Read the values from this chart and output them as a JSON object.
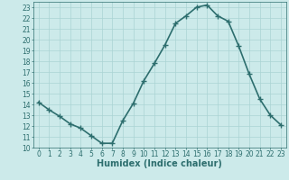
{
  "x": [
    0,
    1,
    2,
    3,
    4,
    5,
    6,
    7,
    8,
    9,
    10,
    11,
    12,
    13,
    14,
    15,
    16,
    17,
    18,
    19,
    20,
    21,
    22,
    23
  ],
  "y": [
    14.2,
    13.5,
    12.9,
    12.2,
    11.8,
    11.1,
    10.4,
    10.4,
    12.5,
    14.1,
    16.2,
    17.8,
    19.5,
    21.5,
    22.2,
    23.0,
    23.2,
    22.2,
    21.7,
    19.4,
    16.8,
    14.5,
    13.0,
    12.1
  ],
  "xlabel": "Humidex (Indice chaleur)",
  "xlim": [
    -0.5,
    23.5
  ],
  "ylim": [
    10,
    23.5
  ],
  "yticks": [
    10,
    11,
    12,
    13,
    14,
    15,
    16,
    17,
    18,
    19,
    20,
    21,
    22,
    23
  ],
  "xticks": [
    0,
    1,
    2,
    3,
    4,
    5,
    6,
    7,
    8,
    9,
    10,
    11,
    12,
    13,
    14,
    15,
    16,
    17,
    18,
    19,
    20,
    21,
    22,
    23
  ],
  "line_color": "#2d6e6e",
  "marker": "+",
  "bg_color": "#cceaea",
  "grid_color": "#aad4d4",
  "tick_label_color": "#2d6e6e",
  "xlabel_color": "#2d6e6e",
  "xlabel_fontsize": 7,
  "tick_fontsize": 5.5,
  "linewidth": 1.2,
  "markersize": 4,
  "markerwidth": 1.0
}
